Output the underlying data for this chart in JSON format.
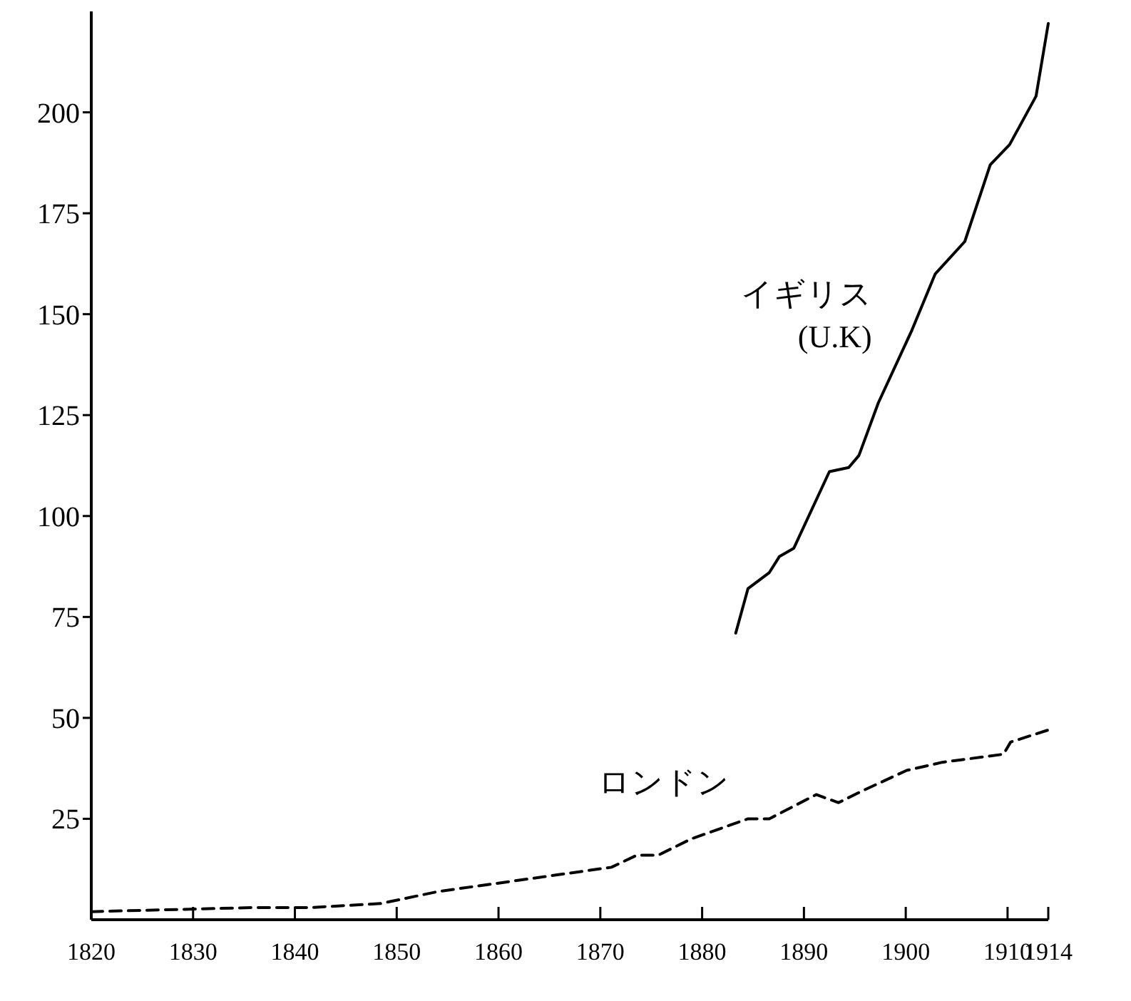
{
  "chart_data": {
    "type": "line",
    "xlim": [
      1820,
      1914
    ],
    "xticks": [
      1820,
      1830,
      1840,
      1850,
      1860,
      1870,
      1880,
      1890,
      1900,
      1910,
      1914
    ],
    "ylim": [
      0,
      225
    ],
    "yticks": [
      25,
      50,
      75,
      100,
      125,
      150,
      175,
      200
    ],
    "grid": false,
    "series": [
      {
        "name": "イギリス (U.K)",
        "color": "#000000",
        "line_style": "solid",
        "x": [
          1883.3,
          1884.5,
          1886.6,
          1887.6,
          1889.0,
          1892.5,
          1894.4,
          1895.4,
          1897.3,
          1900.6,
          1902.9,
          1905.8,
          1908.3,
          1910.2,
          1912.8,
          1914
        ],
        "values": [
          71,
          82,
          86,
          90,
          92,
          111,
          112,
          115,
          128,
          146,
          160,
          168,
          187,
          192,
          204,
          222
        ]
      },
      {
        "name": "ロンドン",
        "color": "#000000",
        "line_style": "dashed",
        "x": [
          1820,
          1835.7,
          1841.4,
          1848.4,
          1854.1,
          1859.8,
          1871.1,
          1873.6,
          1875.7,
          1878.9,
          1884.5,
          1886.6,
          1891.2,
          1893.4,
          1895.8,
          1900.1,
          1903.6,
          1909.6,
          1910.3,
          1914
        ],
        "values": [
          2,
          3,
          3,
          4,
          7,
          9,
          13,
          16,
          16,
          20,
          25,
          25,
          31,
          29,
          32,
          37,
          39,
          41,
          44,
          47
        ]
      }
    ]
  }
}
